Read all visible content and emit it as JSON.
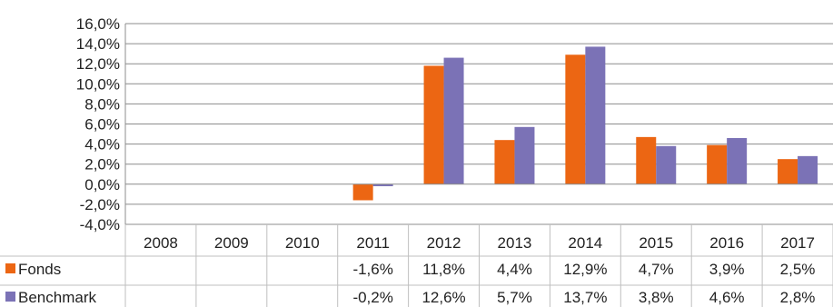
{
  "chart_data": {
    "type": "bar",
    "categories": [
      "2008",
      "2009",
      "2010",
      "2011",
      "2012",
      "2013",
      "2014",
      "2015",
      "2016",
      "2017"
    ],
    "series": [
      {
        "name": "Fonds",
        "color": "#EC6613",
        "values": [
          null,
          null,
          null,
          -1.6,
          11.8,
          4.4,
          12.9,
          4.7,
          3.9,
          2.5
        ],
        "labels": [
          "",
          "",
          "",
          "-1,6%",
          "11,8%",
          "4,4%",
          "12,9%",
          "4,7%",
          "3,9%",
          "2,5%"
        ]
      },
      {
        "name": "Benchmark",
        "color": "#7B72B6",
        "values": [
          null,
          null,
          null,
          -0.2,
          12.6,
          5.7,
          13.7,
          3.8,
          4.6,
          2.8
        ],
        "labels": [
          "",
          "",
          "",
          "-0,2%",
          "12,6%",
          "5,7%",
          "13,7%",
          "3,8%",
          "4,6%",
          "2,8%"
        ]
      }
    ],
    "ylim": [
      -4,
      16
    ],
    "yticks": [
      {
        "value": 16,
        "label": "16,0%"
      },
      {
        "value": 14,
        "label": "14,0%"
      },
      {
        "value": 12,
        "label": "12,0%"
      },
      {
        "value": 10,
        "label": "10,0%"
      },
      {
        "value": 8,
        "label": "8,0%"
      },
      {
        "value": 6,
        "label": "6,0%"
      },
      {
        "value": 4,
        "label": "4,0%"
      },
      {
        "value": 2,
        "label": "2,0%"
      },
      {
        "value": 0,
        "label": "0,0%"
      },
      {
        "value": -2,
        "label": "-2,0%"
      },
      {
        "value": -4,
        "label": "-4,0%"
      }
    ],
    "grid": true,
    "legend": "data-table-below"
  }
}
